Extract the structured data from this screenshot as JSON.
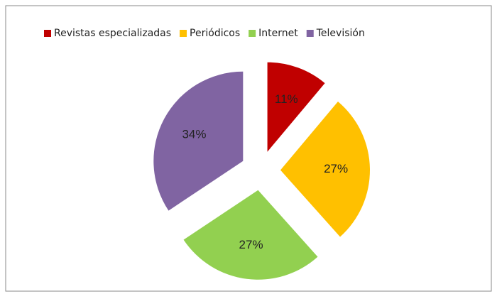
{
  "chart_data": {
    "type": "pie",
    "categories": [
      "Revistas especializadas",
      "Periódicos",
      "Internet",
      "Televisión"
    ],
    "values": [
      11,
      27,
      27,
      34
    ],
    "value_labels": [
      "11%",
      "27%",
      "27%",
      "34%"
    ],
    "colors": [
      "#c00000",
      "#ffc000",
      "#92d050",
      "#8064a2"
    ],
    "legend": "top"
  }
}
